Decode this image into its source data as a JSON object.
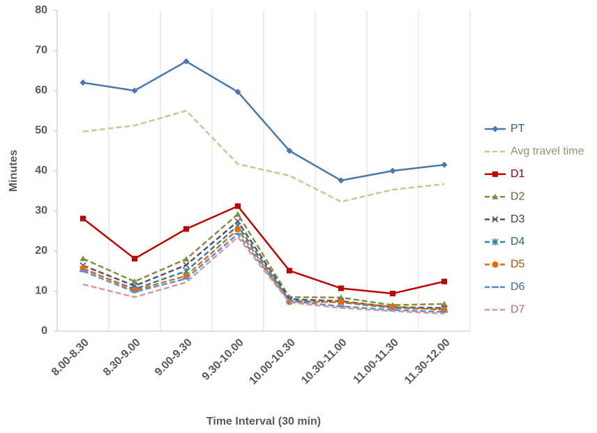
{
  "chart_data": {
    "type": "line",
    "x_label": "Time Interval (30 min)",
    "y_label": "Minutes",
    "categories": [
      "8.00-8.30",
      "8.30-9.00",
      "9.00-9.30",
      "9.30-10.00",
      "10.00-10.30",
      "10.30-11.00",
      "11.00-11.30",
      "11.30-12.00"
    ],
    "ylim": [
      0,
      80
    ],
    "yticks": [
      0,
      10,
      20,
      30,
      40,
      50,
      60,
      70,
      80
    ],
    "grid": "vertical",
    "legend": "right",
    "series": [
      {
        "name": "PT",
        "color": "#4a76b0",
        "marker": "diamond",
        "dashed": false,
        "values": [
          62,
          60,
          67.3,
          59.7,
          45,
          37.6,
          40,
          41.5
        ]
      },
      {
        "name": "Avg travel time",
        "color": "#b8d08e",
        "marker": "none",
        "dashed": true,
        "values": [
          49.8,
          51.3,
          55,
          41.7,
          38.8,
          32.3,
          35.3,
          36.7
        ]
      },
      {
        "name": "D1",
        "color": "#c00000",
        "marker": "square",
        "dashed": false,
        "values": [
          28.1,
          18.1,
          25.5,
          31.2,
          15.1,
          10.7,
          9.4,
          12.4
        ]
      },
      {
        "name": "D2",
        "color": "#77933c",
        "marker": "triangle",
        "dashed": true,
        "values": [
          18.1,
          12.4,
          18,
          29.2,
          8.5,
          8.4,
          6.5,
          6.8
        ]
      },
      {
        "name": "D3",
        "color": "#60497a",
        "marker": "x",
        "dashed": true,
        "values": [
          16.4,
          11.3,
          16.5,
          27.4,
          8,
          7.5,
          6,
          5.8
        ]
      },
      {
        "name": "D4",
        "color": "#31859c",
        "marker": "star",
        "dashed": true,
        "values": [
          15.5,
          10.5,
          15,
          26.3,
          7.6,
          7.2,
          5.8,
          5.5
        ]
      },
      {
        "name": "D5",
        "color": "#e46c0a",
        "marker": "circle",
        "dashed": true,
        "values": [
          15.7,
          10.2,
          13.8,
          25.4,
          7.3,
          7.3,
          6.1,
          5.3
        ]
      },
      {
        "name": "D6",
        "color": "#558ed5",
        "marker": "dash",
        "dashed": true,
        "values": [
          15,
          9.8,
          13.1,
          24.3,
          7.5,
          6.2,
          5.3,
          4.8
        ]
      },
      {
        "name": "D7",
        "color": "#d99694",
        "marker": "none",
        "dashed": true,
        "values": [
          11.7,
          8.5,
          12.2,
          23.5,
          7.2,
          5.8,
          5.0,
          4.4
        ]
      }
    ]
  }
}
